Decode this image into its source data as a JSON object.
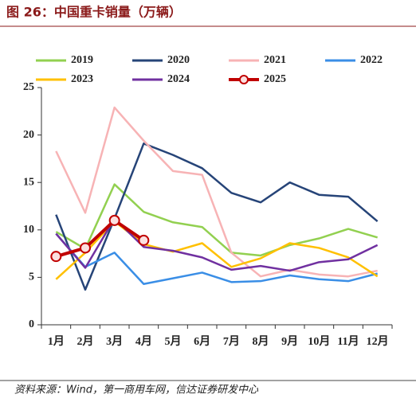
{
  "title": "图 26：中国重卡销量（万辆）",
  "source": "资料来源：Wind，第一商用车网，信达证券研发中心",
  "chart_data": {
    "type": "line",
    "categories": [
      "1月",
      "2月",
      "3月",
      "4月",
      "5月",
      "6月",
      "7月",
      "8月",
      "9月",
      "10月",
      "11月",
      "12月"
    ],
    "series": [
      {
        "name": "2019",
        "color": "#92d050",
        "values": [
          9.8,
          8.0,
          14.8,
          11.9,
          10.8,
          10.3,
          7.6,
          7.3,
          8.4,
          9.1,
          10.1,
          9.2
        ]
      },
      {
        "name": "2020",
        "color": "#264478",
        "values": [
          11.6,
          3.7,
          11.2,
          19.1,
          17.9,
          16.5,
          13.9,
          12.9,
          15.0,
          13.7,
          13.5,
          10.9
        ]
      },
      {
        "name": "2021",
        "color": "#f7b3b5",
        "values": [
          18.3,
          11.8,
          22.9,
          19.4,
          16.2,
          15.8,
          7.6,
          5.1,
          5.8,
          5.3,
          5.1,
          5.7
        ]
      },
      {
        "name": "2022",
        "color": "#3a8ee6",
        "values": [
          9.6,
          6.1,
          7.6,
          4.3,
          4.9,
          5.5,
          4.5,
          4.6,
          5.2,
          4.8,
          4.6,
          5.4
        ]
      },
      {
        "name": "2023",
        "color": "#ffc000",
        "values": [
          4.8,
          7.6,
          10.9,
          8.5,
          7.7,
          8.6,
          6.1,
          7.0,
          8.6,
          8.1,
          7.1,
          5.1
        ]
      },
      {
        "name": "2024",
        "color": "#7030a0",
        "values": [
          9.6,
          6.0,
          11.2,
          8.2,
          7.8,
          7.1,
          5.8,
          6.2,
          5.7,
          6.6,
          6.9,
          8.4
        ]
      },
      {
        "name": "2025",
        "color": "#c00000",
        "values": [
          7.2,
          8.1,
          11.0,
          8.9,
          null,
          null,
          null,
          null,
          null,
          null,
          null,
          null
        ]
      }
    ],
    "ylim": [
      0,
      25
    ],
    "yticks": [
      0,
      5,
      10,
      15,
      20,
      25
    ],
    "grid": false
  }
}
